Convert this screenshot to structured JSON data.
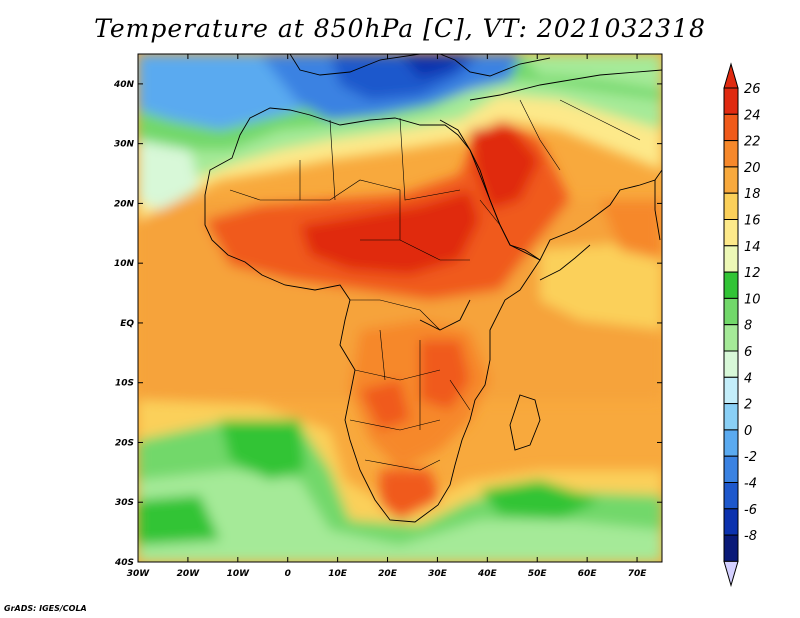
{
  "title": "Temperature at 850hPa [C], VT: 2021032318",
  "credit": "GrADS: IGES/COLA",
  "map": {
    "variable": "Temperature at 850hPa",
    "units": "C",
    "valid_time": "2021032318",
    "lon_range": [
      -30,
      75
    ],
    "lat_range": [
      -40,
      45
    ],
    "x_ticks": [
      "30W",
      "20W",
      "10W",
      "0",
      "10E",
      "20E",
      "30E",
      "40E",
      "50E",
      "60E",
      "70E"
    ],
    "y_ticks": [
      "40N",
      "30N",
      "20N",
      "10N",
      "EQ",
      "10S",
      "20S",
      "30S",
      "40S"
    ]
  },
  "colorbar": {
    "labels": [
      "26",
      "24",
      "22",
      "20",
      "18",
      "16",
      "14",
      "12",
      "10",
      "8",
      "6",
      "4",
      "2",
      "0",
      "-2",
      "-4",
      "-6",
      "-8"
    ],
    "colors": [
      "#e02a10",
      "#f05a1a",
      "#f6882b",
      "#f8a93d",
      "#fbd05a",
      "#fde98a",
      "#edf8b6",
      "#32c436",
      "#72d86a",
      "#a5ea98",
      "#d8f8d8",
      "#c4eefa",
      "#8ad0f6",
      "#5aaaf0",
      "#3a82e2",
      "#1e58cc",
      "#0c32ae",
      "#0a1a78"
    ],
    "top_arrow": "#e02a10",
    "bottom_arrow": "#d4d0ff"
  }
}
